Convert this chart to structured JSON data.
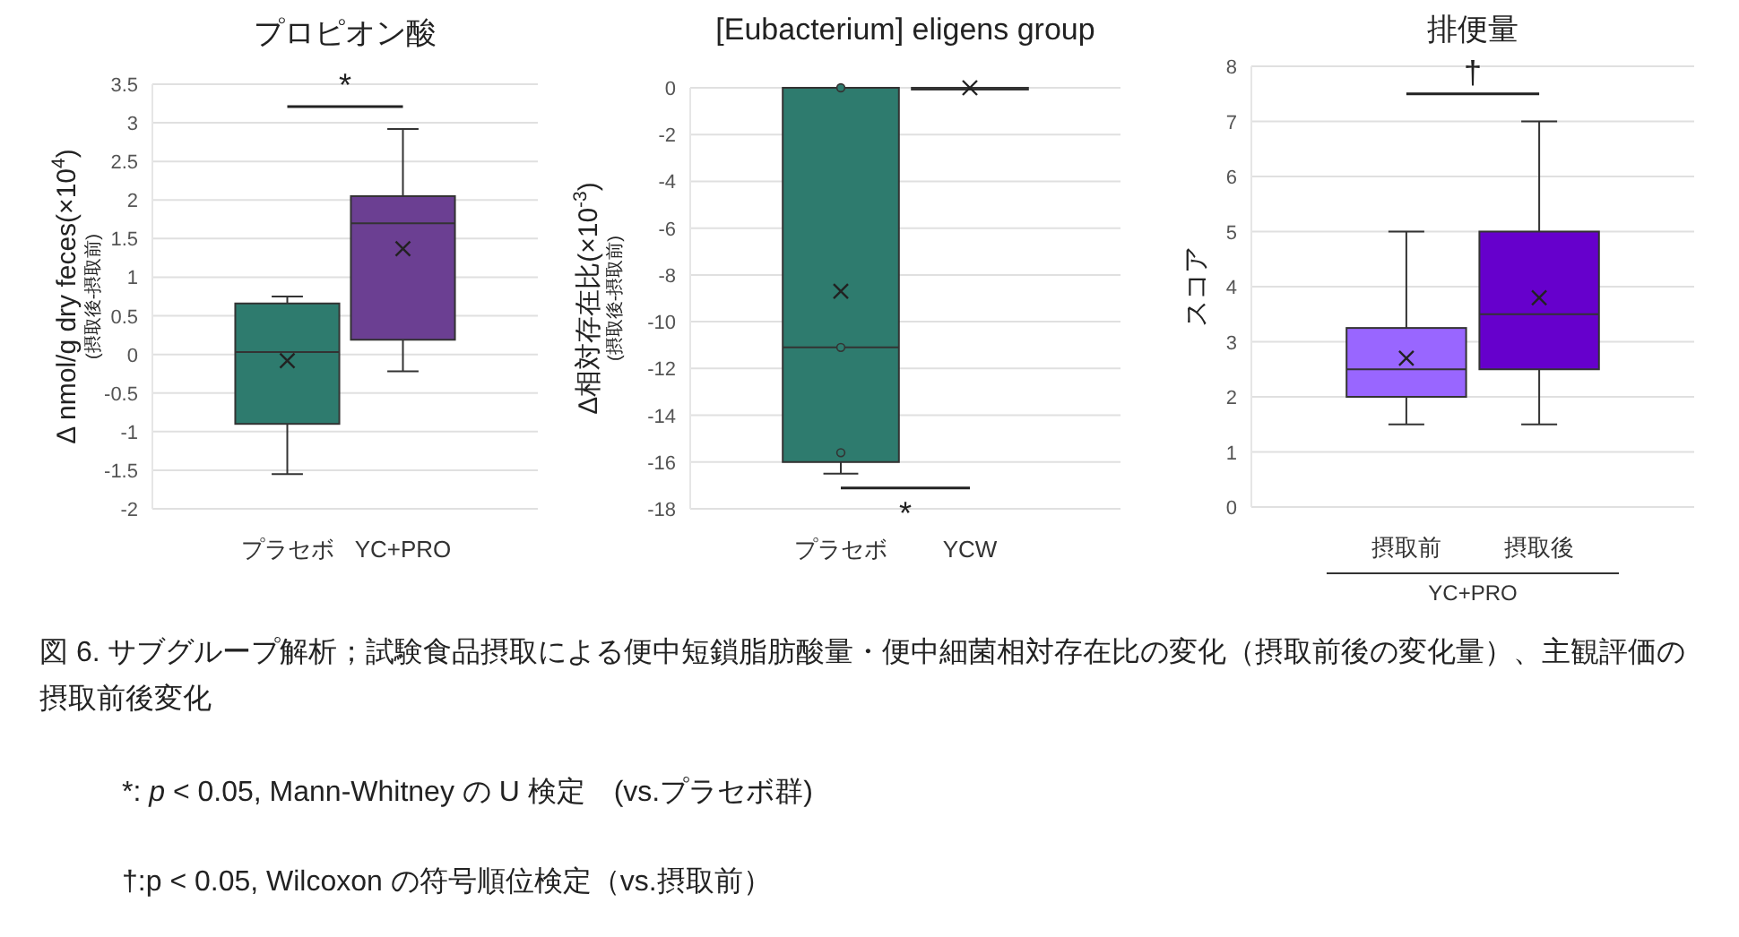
{
  "chart_data": [
    {
      "type": "box",
      "title": "プロピオン酸",
      "ylabel": "Δ nmol/g dry feces(×10$^{4}$)\n(摂取後-摂取前)",
      "categories": [
        "プラセボ",
        "YC+PRO"
      ],
      "colors": [
        "#2e7b6e",
        "#6b3f92"
      ],
      "boxes": [
        {
          "low": -1.55,
          "q1": -0.9,
          "median": 0.03,
          "q3": 0.66,
          "high": 0.75,
          "mean": -0.08
        },
        {
          "low": -0.22,
          "q1": 0.19,
          "median": 1.7,
          "q3": 2.05,
          "high": 2.92,
          "mean": 1.37
        }
      ],
      "ylim": [
        -2,
        3.5
      ],
      "yticks": [
        -2,
        -1.5,
        -1,
        -0.5,
        0,
        0.5,
        1,
        1.5,
        2,
        2.5,
        3,
        3.5
      ],
      "grid": "y",
      "annotations": [
        "*"
      ]
    },
    {
      "type": "box",
      "title": "[Eubacterium] eligens group",
      "ylabel": "Δ相対存在比(×10$^{-3}$)\n(摂取後-摂取前)",
      "categories": [
        "プラセボ",
        "YCW"
      ],
      "colors": [
        "#2e7b6e",
        "#2e7b6e"
      ],
      "boxes": [
        {
          "low": -16.5,
          "q1": -16,
          "median": -11.1,
          "q3": 0,
          "high": 0,
          "mean": -8.7
        },
        {
          "low": 0,
          "q1": 0,
          "median": 0,
          "q3": 0,
          "high": 0,
          "mean": 0
        }
      ],
      "series": [
        {
          "type": "scatter",
          "x": [
            "プラセボ",
            "プラセボ",
            "プラセボ"
          ],
          "values": [
            0,
            -11.1,
            -15.6
          ],
          "color": "#2e7b6e"
        }
      ],
      "ylim": [
        -18,
        0
      ],
      "yticks": [
        -18,
        -16,
        -14,
        -12,
        -10,
        -8,
        -6,
        -4,
        -2,
        0
      ],
      "grid": "y",
      "annotations": [
        "*"
      ]
    },
    {
      "type": "box",
      "title": "排便量",
      "ylabel": "スコア",
      "xlabel": "YC+PRO",
      "categories": [
        "摂取前",
        "摂取後"
      ],
      "colors": [
        "#9966ff",
        "#6600cc"
      ],
      "boxes": [
        {
          "low": 1.5,
          "q1": 2,
          "median": 2.5,
          "q3": 3.25,
          "high": 5,
          "mean": 2.7
        },
        {
          "low": 1.5,
          "q1": 2.5,
          "median": 3.5,
          "q3": 5,
          "high": 7,
          "mean": 3.8
        }
      ],
      "ylim": [
        0,
        8
      ],
      "yticks": [
        0,
        1,
        2,
        3,
        4,
        5,
        6,
        7,
        8
      ],
      "grid": "y",
      "annotations": [
        "†"
      ]
    },
    {
      "type": "other",
      "annotations": [
        "図 6. サブグループ解析；試験食品摂取による便中短鎖脂肪酸量・便中細菌相対存在比の変化（摂取前後の変化量）、主観評価の摂取前後変化",
        "*: *p* < 0.05, Mann-Whitney の U 検定　(vs.プラセボ群)",
        "†:p < 0.05, Wilcoxon の符号順位検定（vs.摂取前）"
      ]
    }
  ]
}
